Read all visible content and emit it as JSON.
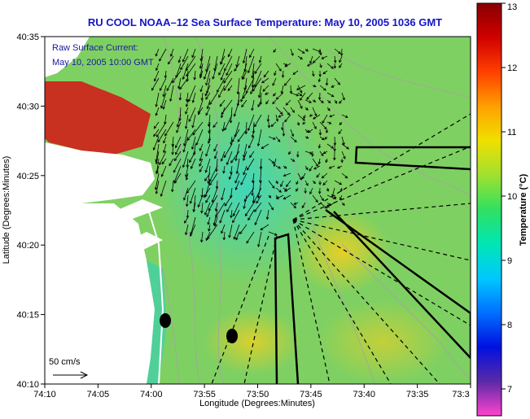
{
  "title": "RU COOL  NOAA–12  Sea Surface Temperature:  May 10, 2005 1036 GMT",
  "annotation": {
    "line1": "Raw Surface Current:",
    "line2": "May 10, 2005 10:00 GMT"
  },
  "scale_label": "50 cm/s",
  "axes": {
    "xlabel": "Longitude (Degrees:Minutes)",
    "ylabel": "Latitude (Degrees:Minutes)",
    "xticks": [
      "74:10",
      "74:05",
      "74:00",
      "73:55",
      "73:50",
      "73:45",
      "73:40",
      "73:35",
      "73:3"
    ],
    "yticks": [
      "40:35",
      "40:30",
      "40:25",
      "40:20",
      "40:15",
      "40:10"
    ]
  },
  "colorbar": {
    "label": "Temperature (°C)",
    "ticks": [
      "13",
      "12",
      "11",
      "10",
      "9",
      "8",
      "7"
    ],
    "colors": [
      "#ff44cc",
      "#5a2aa8",
      "#0010e0",
      "#0070ff",
      "#00c8ff",
      "#00e6b4",
      "#30e060",
      "#a0e030",
      "#f0e000",
      "#ffa000",
      "#ff4000",
      "#d00000",
      "#880000"
    ]
  },
  "colors": {
    "water": "#80d060",
    "land": "#ffffff",
    "warm_water": "#c83020",
    "title_text": "#1414c8"
  }
}
